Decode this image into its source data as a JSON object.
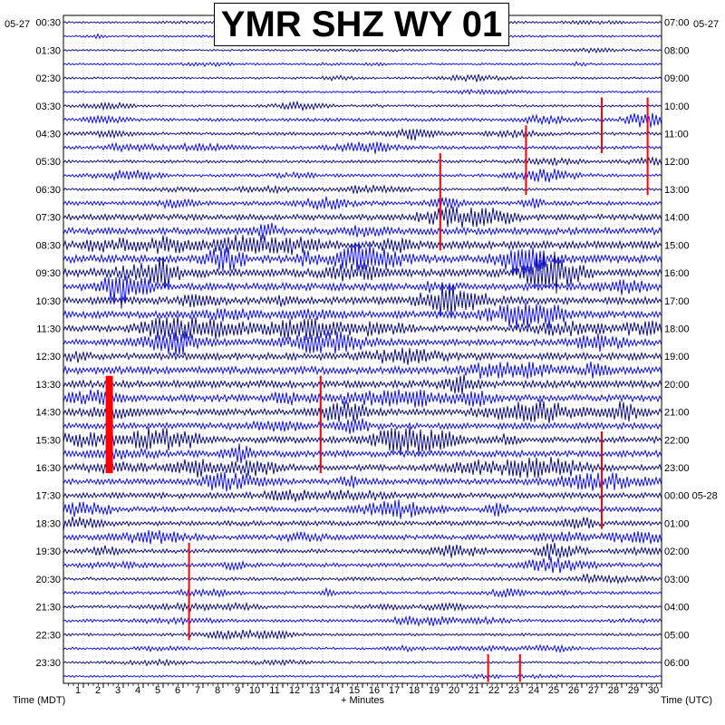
{
  "chart_data": {
    "type": "line",
    "title": "YMR SHZ WY 01",
    "left_date": "05-27",
    "right_date": "05-27",
    "left_axis_label": "Time (MDT)",
    "right_axis_label": "Time (UTC)",
    "x_axis_label": "+ Minutes",
    "xlim": [
      0,
      30
    ],
    "x_ticks": [
      "1",
      "2",
      "3",
      "4",
      "5",
      "6",
      "7",
      "8",
      "9",
      "10",
      "11",
      "12",
      "13",
      "14",
      "15",
      "16",
      "17",
      "18",
      "19",
      "20",
      "21",
      "22",
      "23",
      "24",
      "25",
      "26",
      "27",
      "28",
      "29",
      "30"
    ],
    "left_ticks": [
      "00:30",
      "01:30",
      "02:30",
      "03:30",
      "04:30",
      "05:30",
      "06:30",
      "07:30",
      "08:30",
      "09:30",
      "10:30",
      "11:30",
      "12:30",
      "13:30",
      "14:30",
      "15:30",
      "16:30",
      "17:30",
      "18:30",
      "19:30",
      "20:30",
      "21:30",
      "22:30",
      "23:30"
    ],
    "right_ticks": [
      "07:00",
      "08:00",
      "09:00",
      "10:00",
      "11:00",
      "12:00",
      "13:00",
      "14:00",
      "15:00",
      "16:00",
      "17:00",
      "18:00",
      "19:00",
      "20:00",
      "21:00",
      "22:00",
      "23:00",
      "00:00 05-28",
      "01:00",
      "02:00",
      "03:00",
      "04:00",
      "05:00",
      "06:00"
    ],
    "trace_count": 48,
    "trace_colors": [
      "#000080",
      "#0000ff"
    ],
    "event_color": "#ff0000",
    "grid": true,
    "activity_profile": [
      0.08,
      0.1,
      0.09,
      0.09,
      0.1,
      0.1,
      0.12,
      0.2,
      0.2,
      0.22,
      0.18,
      0.2,
      0.15,
      0.3,
      0.45,
      0.55,
      0.6,
      0.62,
      0.62,
      0.6,
      0.58,
      0.55,
      0.5,
      0.48,
      0.55,
      0.6,
      0.58,
      0.55,
      0.5,
      0.48,
      0.5,
      0.5,
      0.48,
      0.45,
      0.42,
      0.4,
      0.35,
      0.38,
      0.3,
      0.28,
      0.22,
      0.2,
      0.18,
      0.18,
      0.15,
      0.14,
      0.12,
      0.1
    ],
    "events": [
      {
        "trace": 10,
        "minute": 18.9,
        "span_traces": 7,
        "color": "red"
      },
      {
        "trace": 6,
        "minute": 27.0,
        "span_traces": 4,
        "color": "red"
      },
      {
        "trace": 6,
        "minute": 29.3,
        "span_traces": 7,
        "color": "red"
      },
      {
        "trace": 8,
        "minute": 23.2,
        "span_traces": 5,
        "color": "red"
      },
      {
        "trace": 26,
        "minute": 2.3,
        "span_traces": 7,
        "color": "red"
      },
      {
        "trace": 26,
        "minute": 12.9,
        "span_traces": 7,
        "color": "red"
      },
      {
        "trace": 30,
        "minute": 27.0,
        "span_traces": 7,
        "color": "red"
      },
      {
        "trace": 38,
        "minute": 6.3,
        "span_traces": 7,
        "color": "red"
      },
      {
        "trace": 46,
        "minute": 21.3,
        "span_traces": 2,
        "color": "red"
      },
      {
        "trace": 46,
        "minute": 22.9,
        "span_traces": 2,
        "color": "red"
      }
    ]
  }
}
